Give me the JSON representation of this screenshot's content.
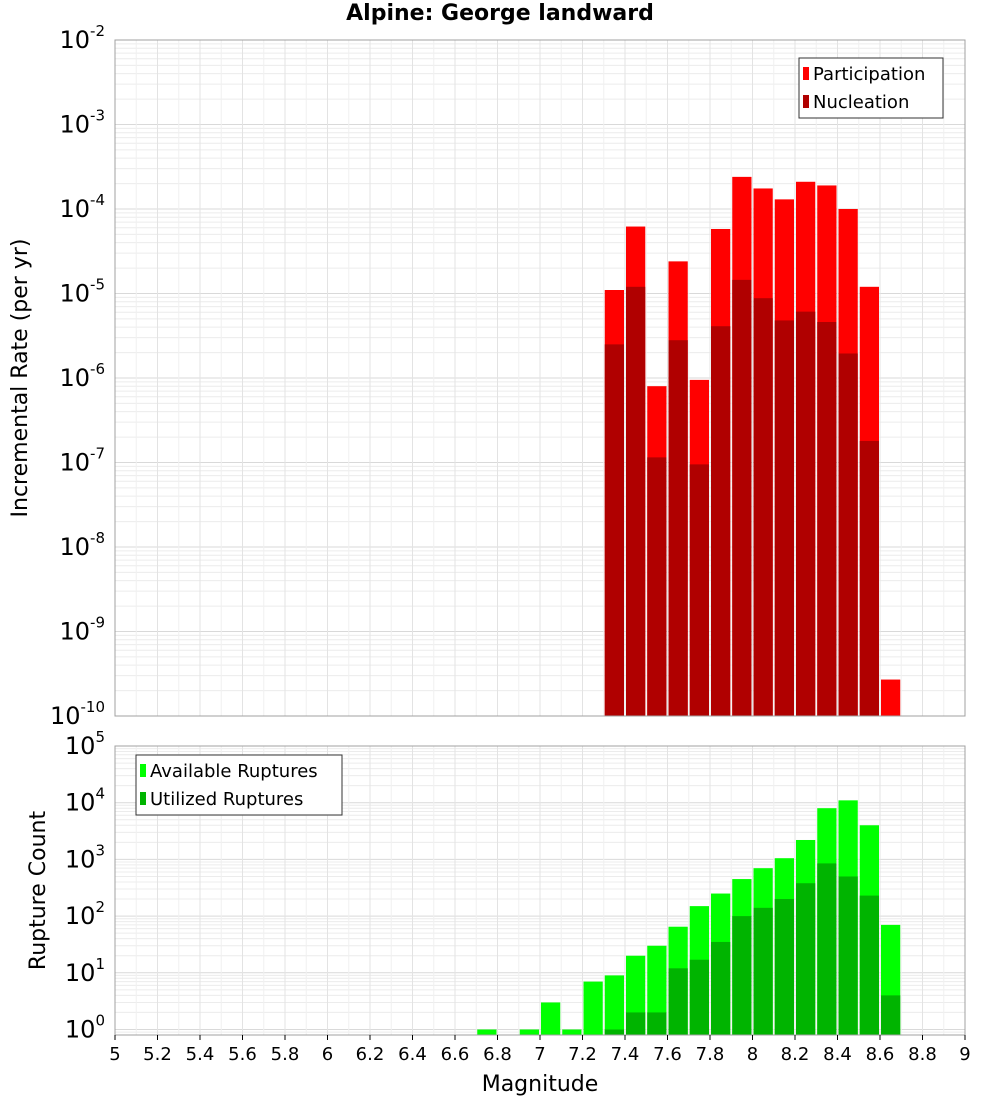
{
  "title": "Alpine: George landward",
  "chart_data": [
    {
      "type": "bar",
      "ylabel": "Incremental Rate (per yr)",
      "xlabel": "Magnitude",
      "yscale": "log",
      "ylim": [
        1e-10,
        0.01
      ],
      "xlim": [
        5,
        9
      ],
      "grid": true,
      "legend_position": "top-right",
      "x": [
        7.35,
        7.45,
        7.55,
        7.65,
        7.75,
        7.85,
        7.95,
        8.05,
        8.15,
        8.25,
        8.35,
        8.45,
        8.55,
        8.65
      ],
      "series": [
        {
          "name": "Participation",
          "color": "#ff0000",
          "values": [
            1.1e-05,
            6.2e-05,
            8e-07,
            2.4e-05,
            9.5e-07,
            5.8e-05,
            0.00024,
            0.000175,
            0.00013,
            0.00021,
            0.00019,
            0.0001,
            1.2e-05,
            2.7e-10
          ]
        },
        {
          "name": "Nucleation",
          "color": "#b00000",
          "values": [
            2.5e-06,
            1.2e-05,
            1.15e-07,
            null,
            9.5e-08,
            4.1e-06,
            1.45e-05,
            8.8e-06,
            4.8e-06,
            6.1e-06,
            4.6e-06,
            1.95e-06,
            1.8e-07,
            null
          ]
        }
      ],
      "nucleation_extra": [
        {
          "x": 7.65,
          "value": 2.8e-06
        }
      ]
    },
    {
      "type": "bar",
      "ylabel": "Rupture Count",
      "xlabel": "Magnitude",
      "yscale": "log",
      "ylim": [
        0.8,
        100000
      ],
      "xlim": [
        5,
        9
      ],
      "grid": true,
      "legend_position": "top-left",
      "x": [
        6.75,
        6.95,
        7.05,
        7.15,
        7.25,
        7.35,
        7.45,
        7.55,
        7.65,
        7.75,
        7.85,
        7.95,
        8.05,
        8.15,
        8.25,
        8.35,
        8.45,
        8.55,
        8.65
      ],
      "series": [
        {
          "name": "Available Ruptures",
          "color": "#00ff00",
          "values": [
            1,
            1,
            3,
            1,
            7,
            9,
            20,
            30,
            65,
            150,
            250,
            450,
            700,
            1050,
            2200,
            8000,
            11000,
            4000,
            70
          ]
        },
        {
          "name": "Utilized Ruptures",
          "color": "#00b400",
          "values": [
            null,
            null,
            null,
            null,
            null,
            1,
            2,
            2,
            12,
            17,
            35,
            100,
            140,
            200,
            380,
            850,
            500,
            230,
            4
          ]
        }
      ]
    }
  ],
  "x_ticks": [
    "5",
    "5.2",
    "5.4",
    "5.6",
    "5.8",
    "6",
    "6.2",
    "6.4",
    "6.6",
    "6.8",
    "7",
    "7.2",
    "7.4",
    "7.6",
    "7.8",
    "8",
    "8.2",
    "8.4",
    "8.6",
    "8.8",
    "9"
  ],
  "top_y_exponents": [
    "-2",
    "-3",
    "-4",
    "-5",
    "-6",
    "-7",
    "-8",
    "-9",
    "-10"
  ],
  "bottom_y_exponents": [
    "5",
    "4",
    "3",
    "2",
    "1",
    "0"
  ],
  "tick_base": "10"
}
